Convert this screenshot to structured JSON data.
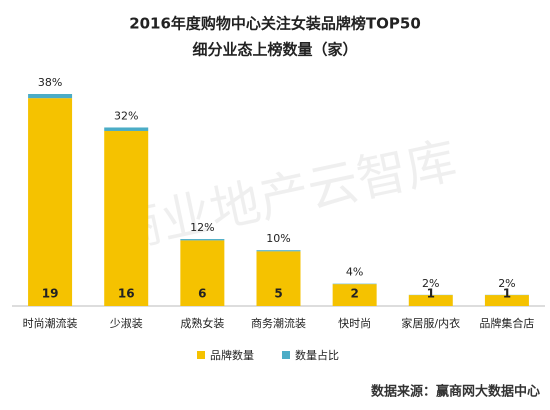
{
  "chart_data": {
    "type": "bar",
    "stacked": true,
    "title": "2016年度购物中心关注女装品牌榜TOP50",
    "subtitle": "细分业态上榜数量（家）",
    "categories": [
      "时尚潮流装",
      "少淑装",
      "成熟女装",
      "商务潮流装",
      "快时尚",
      "家居服/内衣",
      "品牌集合店"
    ],
    "series": [
      {
        "name": "品牌数量",
        "color": "#f5c200",
        "values": [
          19,
          16,
          6,
          5,
          2,
          1,
          1
        ]
      },
      {
        "name": "数量占比",
        "color": "#4bacc6",
        "values": [
          0.38,
          0.32,
          0.12,
          0.1,
          0.04,
          0.02,
          0.02
        ],
        "value_labels": [
          "38%",
          "32%",
          "12%",
          "10%",
          "4%",
          "2%",
          "2%"
        ]
      }
    ],
    "legend": "bottom",
    "watermark": "商业地产云智库",
    "source": "数据来源：赢商网大数据中心"
  }
}
